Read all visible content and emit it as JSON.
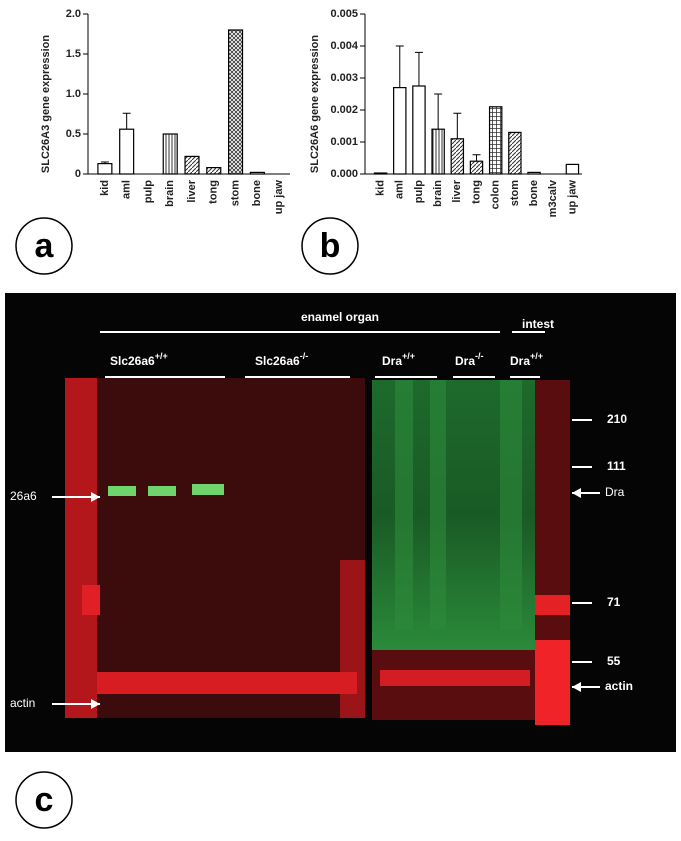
{
  "chart_data": [
    {
      "type": "bar",
      "ylabel": "SLC26A3 gene expression",
      "categories": [
        "kid",
        "aml",
        "pulp",
        "brain",
        "liver",
        "tong",
        "stom",
        "bone",
        "up jaw"
      ],
      "values": [
        0.13,
        0.56,
        0,
        0.5,
        0.22,
        0.08,
        1.8,
        0.02,
        0
      ],
      "errors": [
        0.02,
        0.2,
        null,
        null,
        null,
        null,
        null,
        null,
        null
      ],
      "bar_styles": [
        "open",
        "open",
        "open",
        "vertical",
        "diagonal",
        "diagonal",
        "crosshatch",
        "open",
        "open"
      ],
      "color": "#000000",
      "ylim": [
        0,
        2
      ],
      "yticks": [
        0,
        0.5,
        {
          "value": 1,
          "label": "1.0"
        },
        1.5,
        {
          "value": 2,
          "label": "2.0"
        }
      ],
      "panel": "a"
    },
    {
      "type": "bar",
      "ylabel": "SLC26A6 gene expression",
      "categories": [
        "kid",
        "aml",
        "pulp",
        "brain",
        "liver",
        "tong",
        "colon",
        "stom",
        "bone",
        "m3calv",
        "up jaw"
      ],
      "values": [
        3e-05,
        0.0027,
        0.00275,
        0.0014,
        0.0011,
        0.0004,
        0.0021,
        0.0013,
        5e-05,
        0,
        0.0003
      ],
      "errors": [
        null,
        0.0013,
        0.00105,
        0.0011,
        0.0008,
        0.0002,
        null,
        null,
        null,
        null,
        null
      ],
      "bar_styles": [
        "open",
        "open",
        "open",
        "vertical",
        "diagonal",
        "diagonal",
        "grid",
        "diagonal",
        "open",
        "open",
        "open"
      ],
      "color": "#000000",
      "ylim": [
        0,
        0.005
      ],
      "yticks": [
        {
          "value": 0,
          "label": "0.000"
        },
        {
          "value": 0.001,
          "label": "0.001"
        },
        {
          "value": 0.002,
          "label": "0.002"
        },
        {
          "value": 0.003,
          "label": "0.003"
        },
        {
          "value": 0.004,
          "label": "0.004"
        },
        {
          "value": 0.005,
          "label": "0.005"
        }
      ],
      "panel": "b"
    }
  ],
  "blot": {
    "panel": "c",
    "header": "enamel organ",
    "intest": "intest",
    "groups": [
      {
        "name": "Slc26a6",
        "sup": "+/+"
      },
      {
        "name": "Slc26a6",
        "sup": "-/-"
      },
      {
        "name": "Dra",
        "sup": "+/+"
      },
      {
        "name": "Dra",
        "sup": "-/-"
      },
      {
        "name": "Dra",
        "sup": "+/+"
      }
    ],
    "left_labels": [
      "26a6",
      "actin"
    ],
    "right_labels": [
      "210",
      "111",
      "Dra",
      "71",
      "55",
      "actin"
    ]
  }
}
